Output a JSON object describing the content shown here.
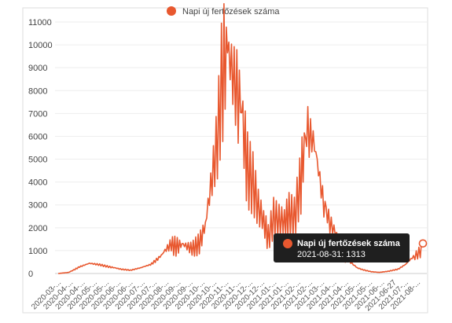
{
  "chart_data": {
    "type": "line",
    "legend": {
      "label": "Napi új fertőzések száma",
      "color": "#e8582f",
      "placement": "top-center"
    },
    "ylim": [
      0,
      11000
    ],
    "y_ticks": [
      0,
      1000,
      2000,
      3000,
      4000,
      5000,
      6000,
      7000,
      8000,
      9000,
      10000,
      11000
    ],
    "x_tick_labels": [
      "2020-03-...",
      "2020-04-...",
      "2020-04-...",
      "2020-05-...",
      "2020-05-...",
      "2020-06-...",
      "2020-06-...",
      "2020-07-...",
      "2020-07-...",
      "2020-08-...",
      "2020-09-...",
      "2020-09-...",
      "2020-10-...",
      "2020-10-...",
      "2020-11-...",
      "2020-11-...",
      "2020-12-...",
      "2020-12-...",
      "2021-01-...",
      "2021-01-...",
      "2021-02-...",
      "2021-02-...",
      "2021-03-...",
      "2021-04-...",
      "2021-04-...",
      "2021-05-...",
      "2021-05-...",
      "2021-06-...",
      "2021-06-27",
      "2021-07-...",
      "2021-08-..."
    ],
    "grid": true,
    "series": [
      {
        "name": "Napi új fertőzések száma",
        "color": "#e8582f",
        "x": [
          "2020-03-04",
          "2020-03-20",
          "2020-04-05",
          "2020-04-20",
          "2020-05-05",
          "2020-05-20",
          "2020-06-05",
          "2020-06-20",
          "2020-07-05",
          "2020-07-20",
          "2020-08-05",
          "2020-08-20",
          "2020-09-05",
          "2020-09-20",
          "2020-10-01",
          "2020-10-10",
          "2020-10-20",
          "2020-10-28",
          "2020-11-05",
          "2020-11-12",
          "2020-11-20",
          "2020-11-28",
          "2020-12-05",
          "2020-12-12",
          "2020-12-20",
          "2020-12-28",
          "2021-01-05",
          "2021-01-12",
          "2021-01-20",
          "2021-01-28",
          "2021-02-05",
          "2021-02-12",
          "2021-02-20",
          "2021-02-28",
          "2021-03-05",
          "2021-03-12",
          "2021-03-20",
          "2021-03-28",
          "2021-04-05",
          "2021-04-12",
          "2021-04-20",
          "2021-04-28",
          "2021-05-05",
          "2021-05-15",
          "2021-05-25",
          "2021-06-05",
          "2021-06-15",
          "2021-06-27",
          "2021-07-10",
          "2021-07-25",
          "2021-08-05",
          "2021-08-15",
          "2021-08-25",
          "2021-08-31"
        ],
        "values": [
          0,
          50,
          300,
          450,
          400,
          300,
          200,
          150,
          250,
          400,
          800,
          1400,
          1300,
          1200,
          1500,
          2200,
          4500,
          6500,
          10200,
          10000,
          9200,
          8500,
          7000,
          5200,
          4500,
          3200,
          2500,
          1800,
          2800,
          2600,
          2500,
          3000,
          2800,
          4300,
          5500,
          6600,
          6000,
          4600,
          3200,
          2500,
          2000,
          1500,
          900,
          500,
          250,
          150,
          80,
          50,
          100,
          200,
          400,
          700,
          1000,
          1313
        ]
      }
    ],
    "tooltip": {
      "series_label": "Napi új fertőzések száma",
      "date": "2021-08-31",
      "value": "1313",
      "text": "2021-08-31: 1313"
    }
  }
}
